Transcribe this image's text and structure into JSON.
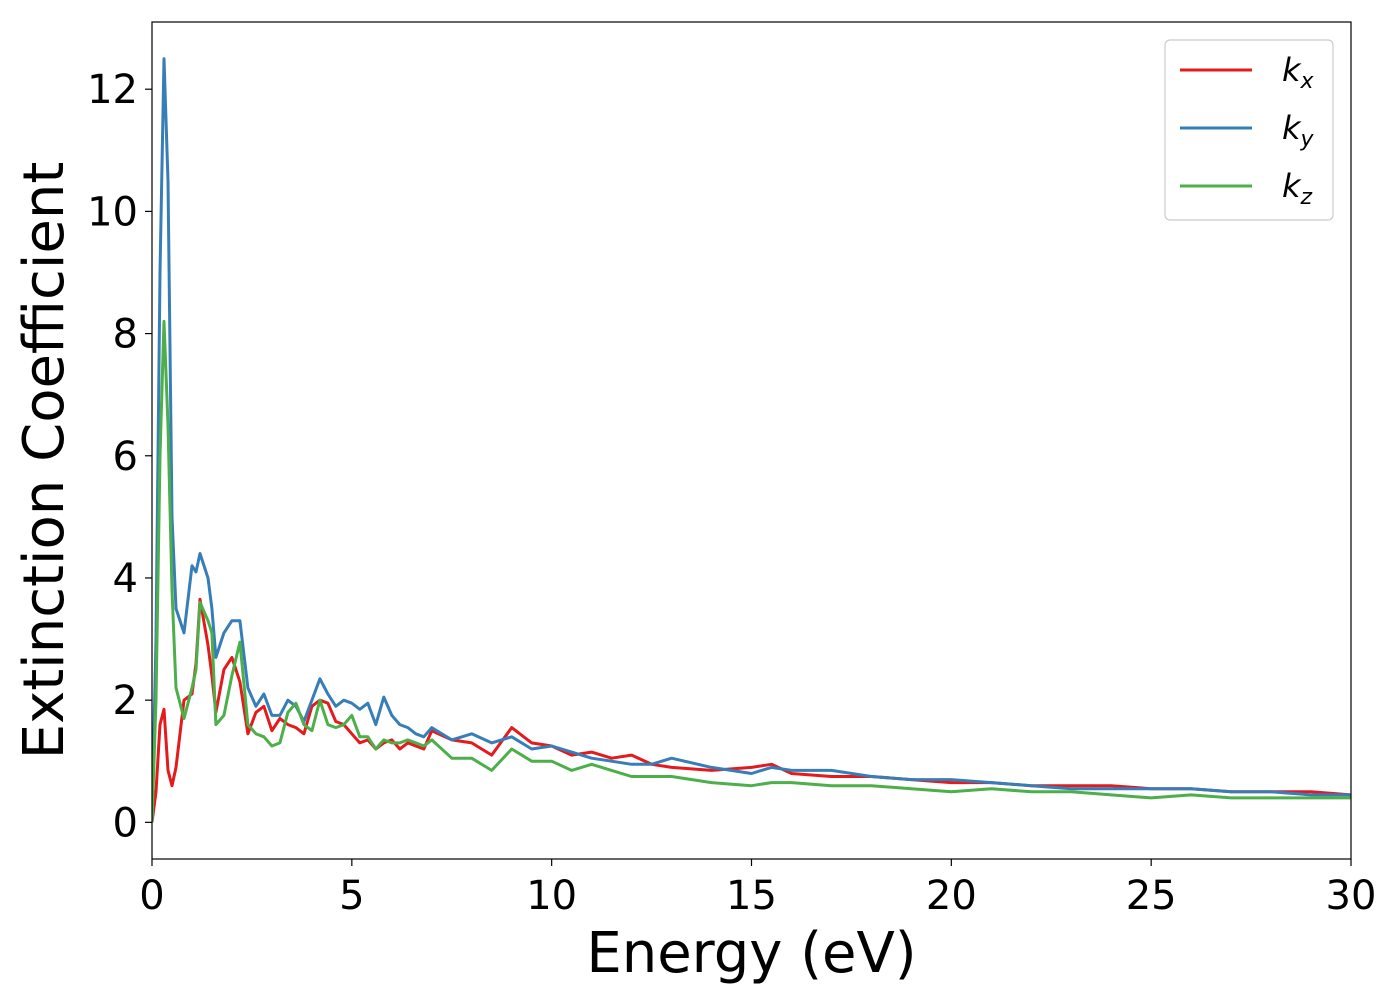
{
  "chart_data": {
    "type": "line",
    "title": "",
    "xlabel": "Energy (eV)",
    "ylabel": "Extinction Coefficient",
    "xlim": [
      0,
      30
    ],
    "ylim": [
      -0.6,
      13.1
    ],
    "xticks": [
      0,
      5,
      10,
      15,
      20,
      25,
      30
    ],
    "xtick_labels": [
      "0",
      "5",
      "10",
      "15",
      "20",
      "25",
      "30"
    ],
    "yticks": [
      0,
      2,
      4,
      6,
      8,
      10,
      12
    ],
    "ytick_labels": [
      "0",
      "2",
      "4",
      "6",
      "8",
      "10",
      "12"
    ],
    "grid": false,
    "legend_position": "top-right",
    "series": [
      {
        "name": "k",
        "subscript": "x",
        "color": "#e41a1c",
        "x": [
          0,
          0.1,
          0.2,
          0.3,
          0.4,
          0.5,
          0.6,
          0.8,
          1.0,
          1.1,
          1.2,
          1.4,
          1.5,
          1.6,
          1.8,
          2.0,
          2.2,
          2.4,
          2.6,
          2.8,
          3.0,
          3.2,
          3.4,
          3.6,
          3.8,
          4.0,
          4.2,
          4.4,
          4.6,
          4.8,
          5.0,
          5.2,
          5.4,
          5.6,
          5.8,
          6.0,
          6.2,
          6.4,
          6.6,
          6.8,
          7.0,
          7.5,
          8.0,
          8.5,
          9.0,
          9.5,
          10.0,
          10.5,
          11.0,
          11.5,
          12.0,
          12.5,
          13.0,
          14.0,
          15.0,
          15.5,
          16.0,
          17.0,
          18.0,
          19.0,
          20.0,
          21.0,
          22.0,
          23.0,
          24.0,
          25.0,
          26.0,
          27.0,
          28.0,
          29.0,
          30.0
        ],
        "y": [
          0.0,
          0.5,
          1.6,
          1.85,
          0.85,
          0.6,
          0.9,
          2.0,
          2.1,
          2.6,
          3.65,
          2.9,
          2.4,
          1.8,
          2.5,
          2.7,
          2.3,
          1.45,
          1.8,
          1.9,
          1.5,
          1.7,
          1.6,
          1.55,
          1.45,
          1.9,
          2.0,
          1.95,
          1.65,
          1.6,
          1.45,
          1.3,
          1.35,
          1.2,
          1.3,
          1.35,
          1.2,
          1.3,
          1.25,
          1.2,
          1.5,
          1.35,
          1.3,
          1.1,
          1.55,
          1.3,
          1.25,
          1.1,
          1.15,
          1.05,
          1.1,
          0.95,
          0.9,
          0.85,
          0.9,
          0.95,
          0.8,
          0.75,
          0.75,
          0.7,
          0.65,
          0.65,
          0.6,
          0.6,
          0.6,
          0.55,
          0.55,
          0.5,
          0.5,
          0.5,
          0.45
        ]
      },
      {
        "name": "k",
        "subscript": "y",
        "color": "#377eb8",
        "x": [
          0,
          0.1,
          0.2,
          0.3,
          0.4,
          0.5,
          0.6,
          0.8,
          1.0,
          1.1,
          1.2,
          1.4,
          1.5,
          1.6,
          1.8,
          2.0,
          2.2,
          2.4,
          2.6,
          2.8,
          3.0,
          3.2,
          3.4,
          3.6,
          3.8,
          4.0,
          4.2,
          4.4,
          4.6,
          4.8,
          5.0,
          5.2,
          5.4,
          5.6,
          5.8,
          6.0,
          6.2,
          6.4,
          6.6,
          6.8,
          7.0,
          7.5,
          8.0,
          8.5,
          9.0,
          9.5,
          10.0,
          10.5,
          11.0,
          11.5,
          12.0,
          12.5,
          13.0,
          14.0,
          15.0,
          15.5,
          16.0,
          17.0,
          18.0,
          19.0,
          20.0,
          21.0,
          22.0,
          23.0,
          24.0,
          25.0,
          26.0,
          27.0,
          28.0,
          29.0,
          30.0
        ],
        "y": [
          0.0,
          3.0,
          9.0,
          12.5,
          10.5,
          5.0,
          3.5,
          3.1,
          4.2,
          4.1,
          4.4,
          4.0,
          3.5,
          2.7,
          3.1,
          3.3,
          3.3,
          2.2,
          1.9,
          2.1,
          1.75,
          1.75,
          2.0,
          1.9,
          1.65,
          2.0,
          2.35,
          2.1,
          1.9,
          2.0,
          1.95,
          1.85,
          1.95,
          1.6,
          2.05,
          1.75,
          1.6,
          1.55,
          1.45,
          1.4,
          1.55,
          1.35,
          1.45,
          1.3,
          1.4,
          1.2,
          1.25,
          1.15,
          1.05,
          1.0,
          0.95,
          0.95,
          1.05,
          0.9,
          0.8,
          0.9,
          0.85,
          0.85,
          0.75,
          0.7,
          0.7,
          0.65,
          0.6,
          0.55,
          0.55,
          0.55,
          0.55,
          0.5,
          0.5,
          0.45,
          0.45
        ]
      },
      {
        "name": "k",
        "subscript": "z",
        "color": "#4daf4a",
        "x": [
          0,
          0.1,
          0.2,
          0.3,
          0.4,
          0.5,
          0.6,
          0.8,
          1.0,
          1.1,
          1.2,
          1.4,
          1.5,
          1.6,
          1.8,
          2.0,
          2.2,
          2.4,
          2.6,
          2.8,
          3.0,
          3.2,
          3.4,
          3.6,
          3.8,
          4.0,
          4.2,
          4.4,
          4.6,
          4.8,
          5.0,
          5.2,
          5.4,
          5.6,
          5.8,
          6.0,
          6.2,
          6.4,
          6.6,
          6.8,
          7.0,
          7.5,
          8.0,
          8.5,
          9.0,
          9.5,
          10.0,
          10.5,
          11.0,
          11.5,
          12.0,
          12.5,
          13.0,
          14.0,
          15.0,
          15.5,
          16.0,
          17.0,
          18.0,
          19.0,
          20.0,
          21.0,
          22.0,
          23.0,
          24.0,
          25.0,
          26.0,
          27.0,
          28.0,
          29.0,
          30.0
        ],
        "y": [
          0.0,
          2.0,
          6.0,
          8.2,
          6.5,
          3.8,
          2.2,
          1.7,
          2.2,
          2.5,
          3.6,
          3.3,
          3.1,
          1.6,
          1.75,
          2.4,
          2.95,
          1.6,
          1.45,
          1.4,
          1.25,
          1.3,
          1.8,
          1.95,
          1.6,
          1.5,
          2.0,
          1.6,
          1.55,
          1.6,
          1.75,
          1.4,
          1.4,
          1.2,
          1.35,
          1.3,
          1.3,
          1.35,
          1.3,
          1.25,
          1.35,
          1.05,
          1.05,
          0.85,
          1.2,
          1.0,
          1.0,
          0.85,
          0.95,
          0.85,
          0.75,
          0.75,
          0.75,
          0.65,
          0.6,
          0.65,
          0.65,
          0.6,
          0.6,
          0.55,
          0.5,
          0.55,
          0.5,
          0.5,
          0.45,
          0.4,
          0.45,
          0.4,
          0.4,
          0.4,
          0.4
        ]
      }
    ]
  }
}
